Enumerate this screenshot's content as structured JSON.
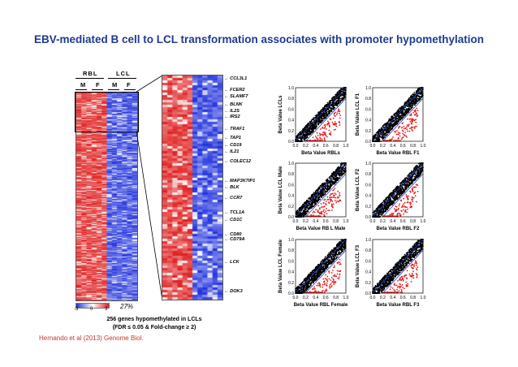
{
  "title": "EBV-mediated B cell to LCL transformation associates with promoter hypomethylation",
  "heatmap": {
    "group_labels": [
      "RBL",
      "LCL"
    ],
    "sample_labels": [
      "M",
      "F",
      "M",
      "F"
    ],
    "colorscale": {
      "min_label": "-3",
      "mid_label": "0",
      "max_label": "3",
      "low_color": "#2233dd",
      "mid_color": "#ffffff",
      "high_color": "#e02020"
    },
    "percent_label": "27%"
  },
  "genes": [
    "CCL3L1",
    "FCER2",
    "SLAMF7",
    "BLNK",
    "IL2S",
    "IRS2",
    "TRAF1",
    "TAP1",
    "CD19",
    "IL21",
    "COLEC12",
    "MAP3K7IP1",
    "BLK",
    "CCR7",
    "TCL1A",
    "CD1C",
    "CD80",
    "CD79A",
    "LCK",
    "DOK3"
  ],
  "caption_line1": "256 genes hypomethylated in LCLs",
  "caption_line2": "(FDR ≤ 0.05 & Fold-change ≥ 2)",
  "credit": "Hernando et al (2013) Genome Biol.",
  "chart_data": [
    {
      "type": "scatter",
      "xlabel": "Beta Value RBLs",
      "ylabel": "Beta Value LCLs",
      "xlim": [
        0,
        1
      ],
      "ylim": [
        0,
        1
      ],
      "x_ticks": [
        "0.0",
        "0.2",
        "0.4",
        "0.6",
        "0.8",
        "1.0"
      ],
      "y_ticks": [
        "0.0",
        "0.2",
        "0.4",
        "0.6",
        "0.8",
        "1.0"
      ],
      "series": [
        {
          "color": "#000000"
        },
        {
          "color": "#e02020"
        },
        {
          "color": "#1f3ad0"
        }
      ]
    },
    {
      "type": "scatter",
      "xlabel": "Beta Value RBL F1",
      "ylabel": "Beta Value LCL F1",
      "xlim": [
        0,
        1
      ],
      "ylim": [
        0,
        1
      ],
      "x_ticks": [
        "0.0",
        "0.2",
        "0.4",
        "0.6",
        "0.8",
        "1.0"
      ],
      "y_ticks": [
        "0.0",
        "0.2",
        "0.4",
        "0.6",
        "0.8",
        "1.0"
      ],
      "series": [
        {
          "color": "#000000"
        },
        {
          "color": "#e02020"
        },
        {
          "color": "#1f3ad0"
        }
      ]
    },
    {
      "type": "scatter",
      "xlabel": "Beta Value RB L Male",
      "ylabel": "Beta Value LCL Male",
      "xlim": [
        0,
        1
      ],
      "ylim": [
        0,
        1
      ],
      "x_ticks": [
        "0.0",
        "0.2",
        "0.4",
        "0.6",
        "0.8",
        "1.0"
      ],
      "y_ticks": [
        "0.0",
        "0.2",
        "0.4",
        "0.6",
        "0.8",
        "1.0"
      ],
      "series": [
        {
          "color": "#000000"
        },
        {
          "color": "#e02020"
        },
        {
          "color": "#1f3ad0"
        }
      ]
    },
    {
      "type": "scatter",
      "xlabel": "Beta Value RBL F2",
      "ylabel": "Beta Value LCL F2",
      "xlim": [
        0,
        1
      ],
      "ylim": [
        0,
        1
      ],
      "x_ticks": [
        "0.0",
        "0.2",
        "0.4",
        "0.6",
        "0.8",
        "1.0"
      ],
      "y_ticks": [
        "0.0",
        "0.2",
        "0.4",
        "0.6",
        "0.8",
        "1.0"
      ],
      "series": [
        {
          "color": "#000000"
        },
        {
          "color": "#e02020"
        },
        {
          "color": "#1f3ad0"
        }
      ]
    },
    {
      "type": "scatter",
      "xlabel": "Beta Value RBL Female",
      "ylabel": "Beta Value LCL Female",
      "xlim": [
        0,
        1
      ],
      "ylim": [
        0,
        1
      ],
      "x_ticks": [
        "0.0",
        "0.2",
        "0.4",
        "0.6",
        "0.8",
        "1.0"
      ],
      "y_ticks": [
        "0.0",
        "0.2",
        "0.4",
        "0.6",
        "0.8",
        "1.0"
      ],
      "series": [
        {
          "color": "#000000"
        },
        {
          "color": "#e02020"
        },
        {
          "color": "#1f3ad0"
        }
      ]
    },
    {
      "type": "scatter",
      "xlabel": "Beta Value RBL F3",
      "ylabel": "Beta Value LCL F3",
      "xlim": [
        0,
        1
      ],
      "ylim": [
        0,
        1
      ],
      "x_ticks": [
        "0.0",
        "0.2",
        "0.4",
        "0.6",
        "0.8",
        "1.0"
      ],
      "y_ticks": [
        "0.0",
        "0.2",
        "0.4",
        "0.6",
        "0.8",
        "1.0"
      ],
      "series": [
        {
          "color": "#000000"
        },
        {
          "color": "#e02020"
        },
        {
          "color": "#1f3ad0"
        }
      ]
    }
  ]
}
